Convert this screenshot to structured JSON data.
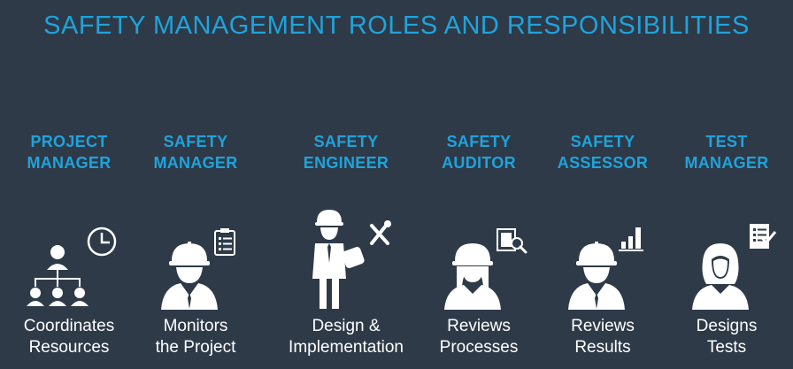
{
  "title": "SAFETY MANAGEMENT ROLES AND RESPONSIBILITIES",
  "roles": [
    {
      "line1": "PROJECT",
      "line2": "MANAGER",
      "desc1": "Coordinates",
      "desc2": "Resources",
      "icon": "org-chart-icon",
      "badge": "clock-icon"
    },
    {
      "line1": "SAFETY",
      "line2": "MANAGER",
      "desc1": "Monitors",
      "desc2": "the Project",
      "icon": "hardhat-worker-icon",
      "badge": "clipboard-icon"
    },
    {
      "line1": "SAFETY",
      "line2": "ENGINEER",
      "desc1": "Design &",
      "desc2": "Implementation",
      "icon": "engineer-blueprint-icon",
      "badge": "wrench-screwdriver-icon"
    },
    {
      "line1": "SAFETY",
      "line2": "AUDITOR",
      "desc1": "Reviews",
      "desc2": "Processes",
      "icon": "hardhat-woman-icon",
      "badge": "book-magnifier-icon"
    },
    {
      "line1": "SAFETY",
      "line2": "ASSESSOR",
      "desc1": "Reviews",
      "desc2": "Results",
      "icon": "hardhat-worker-icon",
      "badge": "bar-chart-icon"
    },
    {
      "line1": "TEST",
      "line2": "MANAGER",
      "desc1": "Designs",
      "desc2": "Tests",
      "icon": "woman-icon",
      "badge": "checklist-icon"
    }
  ]
}
